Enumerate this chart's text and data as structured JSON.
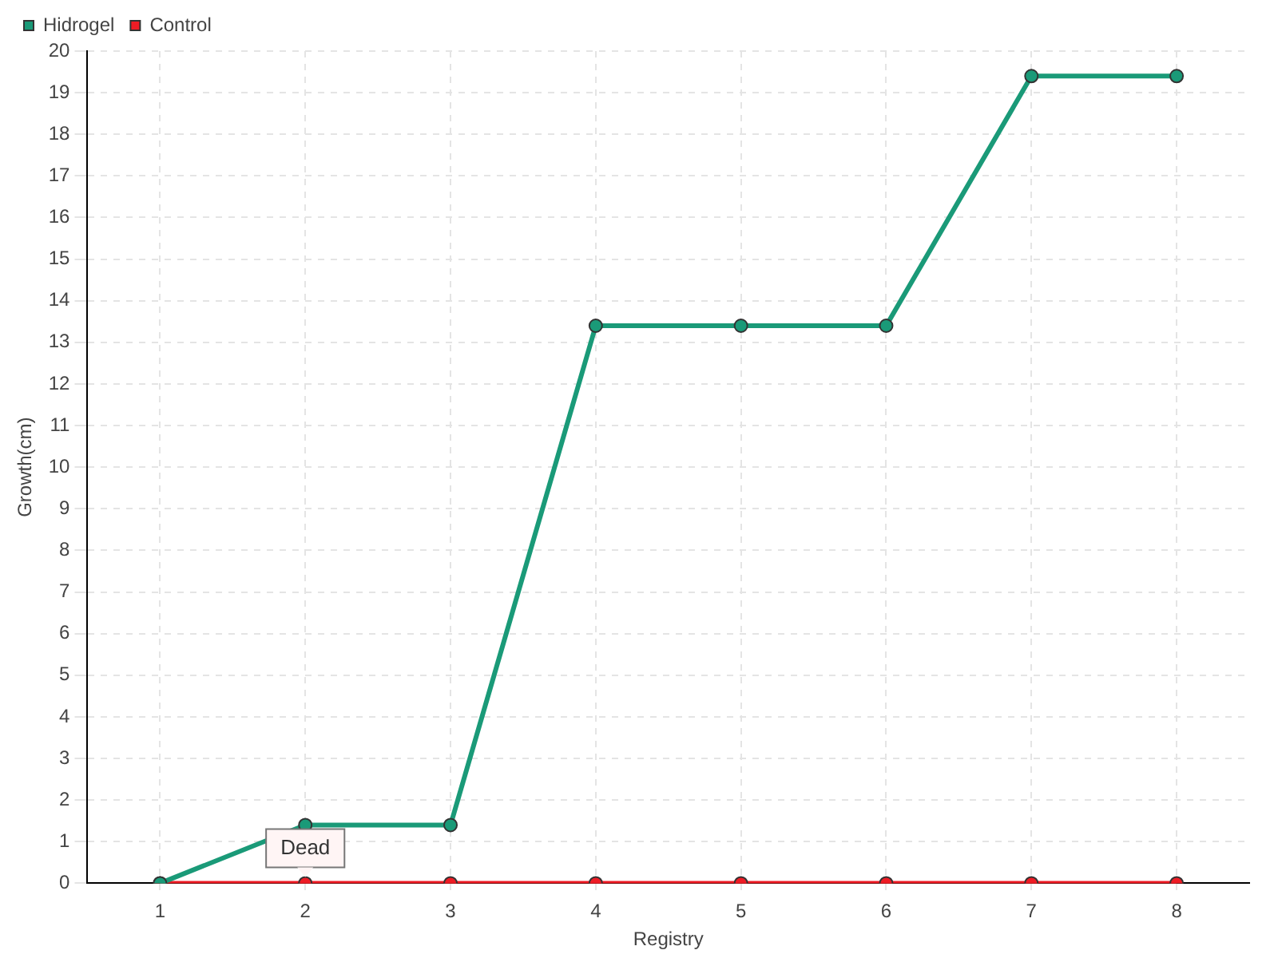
{
  "chart_data": {
    "type": "line",
    "xlabel": "Registry",
    "ylabel": "Growth(cm)",
    "categories": [
      "1",
      "2",
      "3",
      "4",
      "5",
      "6",
      "7",
      "8"
    ],
    "series": [
      {
        "name": "Hidrogel",
        "color": "#1a9a78",
        "values": [
          0,
          1.4,
          1.4,
          13.4,
          13.4,
          13.4,
          19.4,
          19.4
        ]
      },
      {
        "name": "Control",
        "color": "#ee1c25",
        "values": [
          0,
          0,
          0,
          0,
          0,
          0,
          0,
          0
        ]
      }
    ],
    "ylim": [
      0,
      20
    ],
    "yticks": [
      0,
      1,
      2,
      3,
      4,
      5,
      6,
      7,
      8,
      9,
      10,
      11,
      12,
      13,
      14,
      15,
      16,
      17,
      18,
      19,
      20
    ],
    "grid": true,
    "legend": "top left",
    "marker": "circle",
    "line_style": "solid",
    "annotations": [
      {
        "text": "Dead",
        "x": "2",
        "y": 0
      }
    ]
  }
}
